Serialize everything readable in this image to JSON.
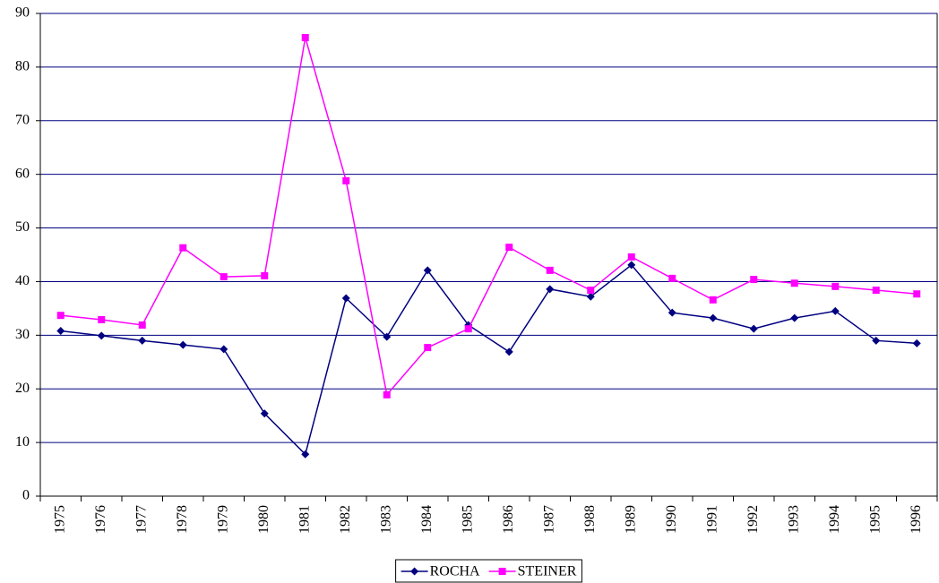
{
  "chart_data": {
    "type": "line",
    "categories": [
      "1975",
      "1976",
      "1977",
      "1978",
      "1979",
      "1980",
      "1981",
      "1982",
      "1983",
      "1984",
      "1985",
      "1986",
      "1987",
      "1988",
      "1989",
      "1990",
      "1991",
      "1992",
      "1993",
      "1994",
      "1995",
      "1996"
    ],
    "series": [
      {
        "name": "ROCHA",
        "color": "#000080",
        "marker": "diamond",
        "values": [
          30.8,
          29.9,
          29.0,
          28.2,
          27.4,
          15.4,
          7.8,
          36.9,
          29.7,
          42.1,
          31.9,
          26.9,
          38.6,
          37.2,
          43.1,
          34.2,
          33.2,
          31.2,
          33.2,
          34.5,
          29.0,
          28.5
        ]
      },
      {
        "name": "STEINER",
        "color": "#ff00ff",
        "marker": "square",
        "values": [
          33.7,
          32.9,
          31.9,
          46.3,
          40.9,
          41.1,
          85.5,
          58.8,
          18.9,
          27.7,
          31.2,
          46.4,
          42.1,
          38.4,
          44.6,
          40.6,
          36.6,
          40.4,
          39.7,
          39.1,
          38.4,
          37.7
        ]
      }
    ],
    "ylim": [
      0,
      90
    ],
    "yticks": [
      0,
      10,
      20,
      30,
      40,
      50,
      60,
      70,
      80,
      90
    ],
    "grid": true,
    "grid_color": "#000080",
    "legend": "bottom"
  }
}
